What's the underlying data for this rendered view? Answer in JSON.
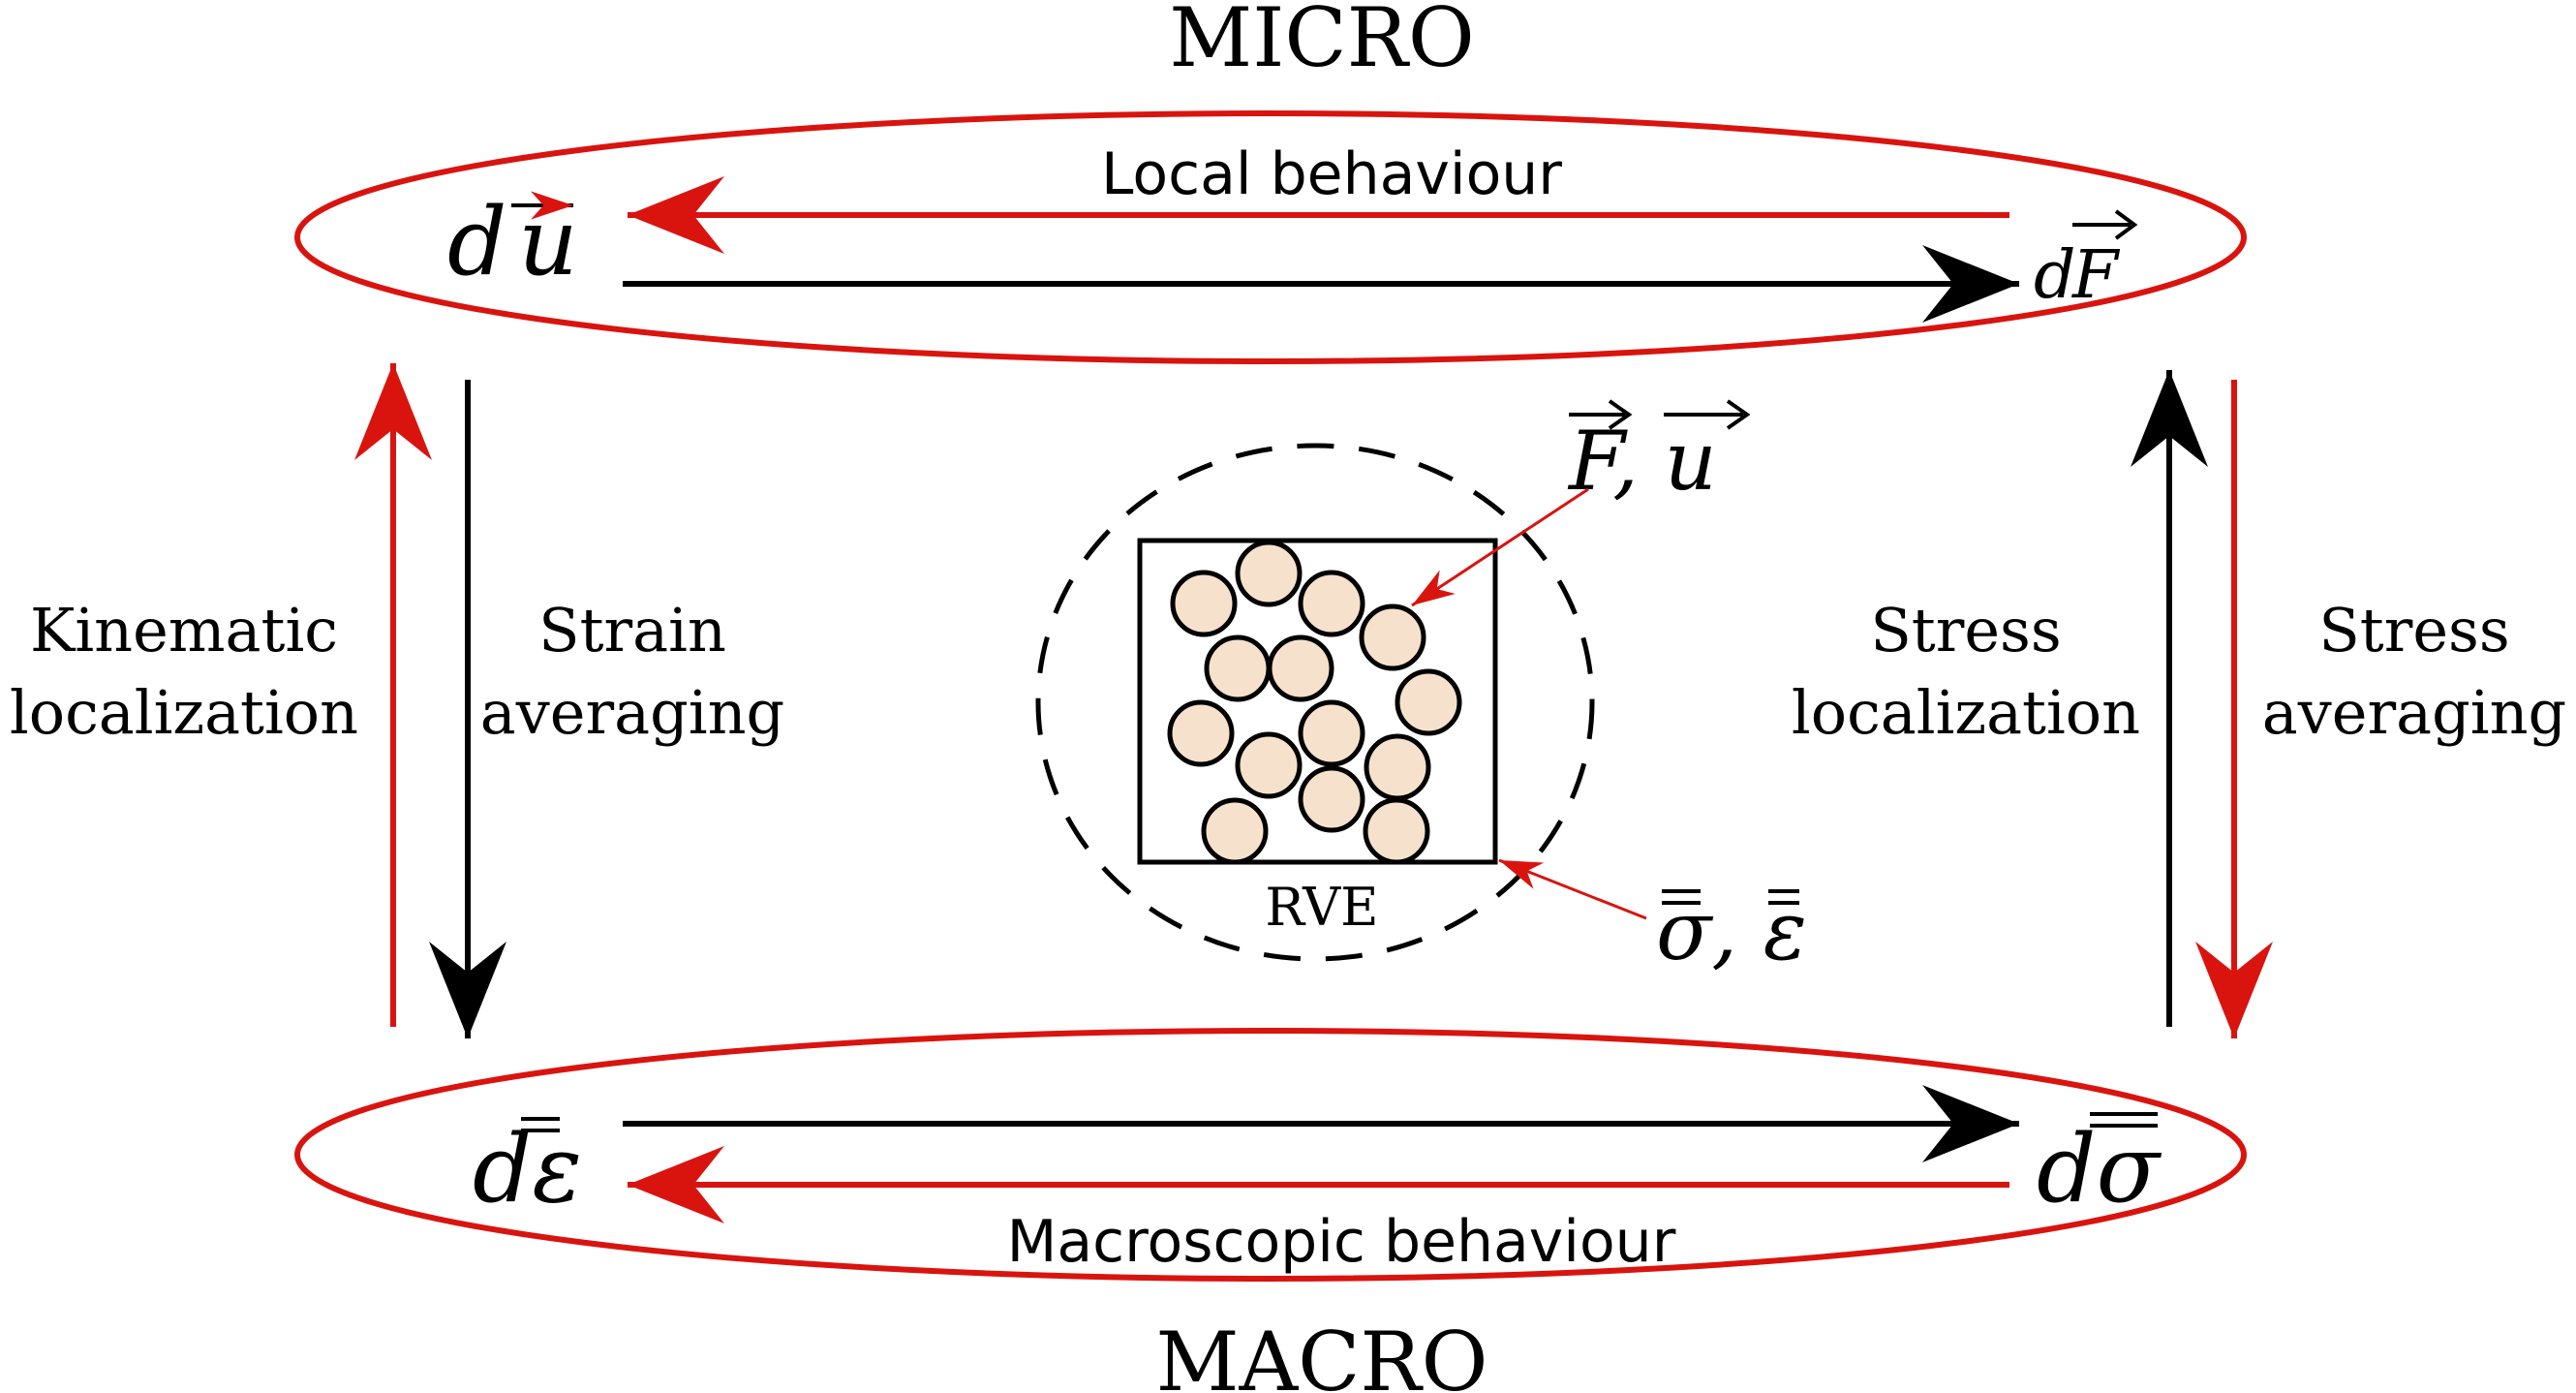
{
  "colors": {
    "red": "#d9140f",
    "black": "#000000",
    "particle_fill": "#f6e1cc",
    "background": "#ffffff"
  },
  "micro": {
    "title": "MICRO",
    "left_symbol": "d u",
    "right_symbol": "d F",
    "behaviour_label": "Local behaviour"
  },
  "macro": {
    "title": "MACRO",
    "left_symbol": "dε",
    "right_symbol": "dσ",
    "behaviour_label": "Macroscopic behaviour"
  },
  "left_side": {
    "red_label_line1": "Kinematic",
    "red_label_line2": "localization",
    "black_label_line1": "Strain",
    "black_label_line2": "averaging"
  },
  "right_side": {
    "black_label_line1": "Stress",
    "black_label_line2": "localization",
    "red_label_line1": "Stress",
    "red_label_line2": "averaging"
  },
  "rve": {
    "label": "RVE",
    "micro_annotation": "F, u",
    "macro_annotation": "σ, ε"
  }
}
